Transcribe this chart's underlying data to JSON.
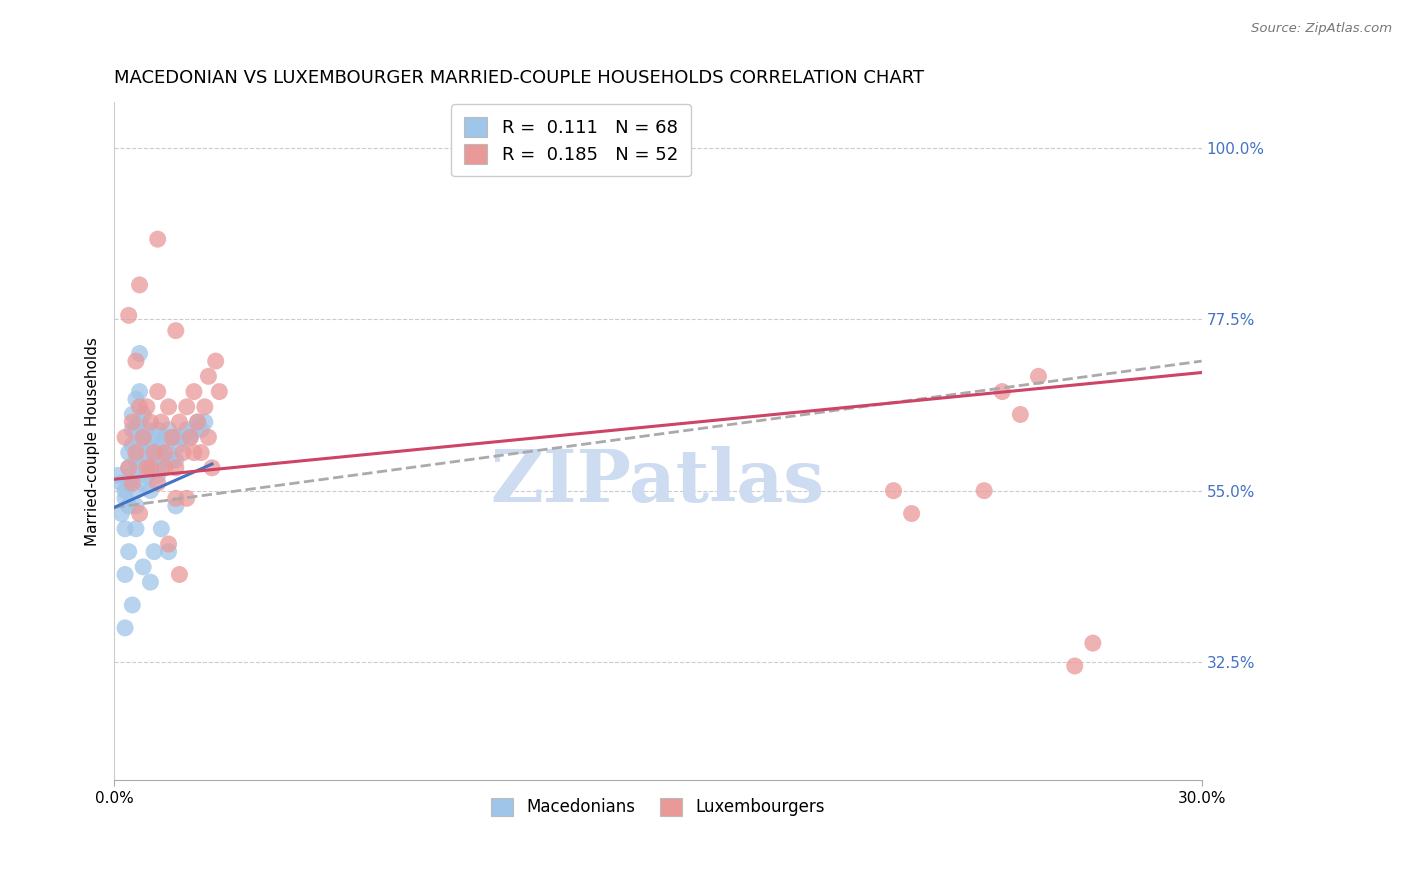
{
  "title": "MACEDONIAN VS LUXEMBOURGER MARRIED-COUPLE HOUSEHOLDS CORRELATION CHART",
  "source": "Source: ZipAtlas.com",
  "ylabel": "Married-couple Households",
  "x_min": 0.0,
  "x_max": 0.3,
  "y_min": 0.17,
  "y_max": 1.06,
  "x_tick_labels": [
    "0.0%",
    "30.0%"
  ],
  "y_tick_values": [
    0.325,
    0.55,
    0.775,
    1.0
  ],
  "y_tick_labels": [
    "32.5%",
    "55.0%",
    "77.5%",
    "100.0%"
  ],
  "legend_v1": "0.111",
  "legend_nv1": "68",
  "legend_v2": "0.185",
  "legend_nv2": "52",
  "blue_scatter_color": "#9fc5e8",
  "pink_scatter_color": "#ea9999",
  "blue_line_color": "#4472c4",
  "pink_line_color": "#cc4466",
  "dashed_line_color": "#aaaaaa",
  "watermark": "ZIPatlas",
  "background_color": "#ffffff",
  "grid_color": "#cccccc",
  "title_fontsize": 13,
  "axis_label_fontsize": 11,
  "tick_fontsize": 11,
  "watermark_fontsize": 52,
  "watermark_color": "#cddcf0",
  "right_tick_color": "#4472c4",
  "mac_x": [
    0.001,
    0.002,
    0.002,
    0.003,
    0.003,
    0.003,
    0.004,
    0.004,
    0.004,
    0.004,
    0.005,
    0.005,
    0.005,
    0.005,
    0.006,
    0.006,
    0.006,
    0.006,
    0.006,
    0.007,
    0.007,
    0.007,
    0.007,
    0.008,
    0.008,
    0.008,
    0.008,
    0.009,
    0.009,
    0.009,
    0.01,
    0.01,
    0.01,
    0.011,
    0.011,
    0.012,
    0.012,
    0.012,
    0.013,
    0.013,
    0.014,
    0.014,
    0.015,
    0.015,
    0.016,
    0.016,
    0.017,
    0.017,
    0.018,
    0.019,
    0.02,
    0.021,
    0.022,
    0.023,
    0.024,
    0.025,
    0.003,
    0.004,
    0.006,
    0.007,
    0.008,
    0.01,
    0.011,
    0.013,
    0.015,
    0.017,
    0.003,
    0.005
  ],
  "mac_y": [
    0.57,
    0.56,
    0.52,
    0.54,
    0.55,
    0.5,
    0.58,
    0.6,
    0.56,
    0.53,
    0.63,
    0.65,
    0.61,
    0.57,
    0.67,
    0.63,
    0.59,
    0.55,
    0.53,
    0.68,
    0.64,
    0.61,
    0.58,
    0.65,
    0.62,
    0.59,
    0.56,
    0.63,
    0.6,
    0.57,
    0.61,
    0.58,
    0.55,
    0.62,
    0.59,
    0.63,
    0.6,
    0.57,
    0.61,
    0.58,
    0.62,
    0.59,
    0.63,
    0.6,
    0.62,
    0.59,
    0.62,
    0.59,
    0.61,
    0.62,
    0.63,
    0.62,
    0.63,
    0.64,
    0.63,
    0.64,
    0.44,
    0.47,
    0.5,
    0.73,
    0.45,
    0.43,
    0.47,
    0.5,
    0.47,
    0.53,
    0.37,
    0.4
  ],
  "lux_x": [
    0.003,
    0.004,
    0.005,
    0.006,
    0.007,
    0.008,
    0.009,
    0.01,
    0.011,
    0.012,
    0.013,
    0.014,
    0.015,
    0.016,
    0.017,
    0.018,
    0.019,
    0.02,
    0.021,
    0.022,
    0.023,
    0.024,
    0.025,
    0.026,
    0.027,
    0.028,
    0.029,
    0.005,
    0.007,
    0.01,
    0.012,
    0.015,
    0.018,
    0.02,
    0.004,
    0.006,
    0.009,
    0.014,
    0.017,
    0.022,
    0.026,
    0.007,
    0.012,
    0.017,
    0.215,
    0.22,
    0.24,
    0.245,
    0.25,
    0.255,
    0.265,
    0.27
  ],
  "lux_y": [
    0.62,
    0.58,
    0.64,
    0.6,
    0.66,
    0.62,
    0.58,
    0.64,
    0.6,
    0.68,
    0.64,
    0.6,
    0.66,
    0.62,
    0.58,
    0.64,
    0.6,
    0.66,
    0.62,
    0.68,
    0.64,
    0.6,
    0.66,
    0.62,
    0.58,
    0.72,
    0.68,
    0.56,
    0.52,
    0.58,
    0.56,
    0.48,
    0.44,
    0.54,
    0.78,
    0.72,
    0.66,
    0.58,
    0.54,
    0.6,
    0.7,
    0.82,
    0.88,
    0.76,
    0.55,
    0.52,
    0.55,
    0.68,
    0.65,
    0.7,
    0.32,
    0.35
  ],
  "blue_line_x0": 0.0,
  "blue_line_x1": 0.027,
  "blue_line_y0": 0.528,
  "blue_line_y1": 0.585,
  "pink_line_x0": 0.0,
  "pink_line_x1": 0.3,
  "pink_line_y0": 0.565,
  "pink_line_y1": 0.705,
  "dashed_line_x0": 0.0,
  "dashed_line_x1": 0.3,
  "dashed_line_y0": 0.528,
  "dashed_line_y1": 0.72
}
